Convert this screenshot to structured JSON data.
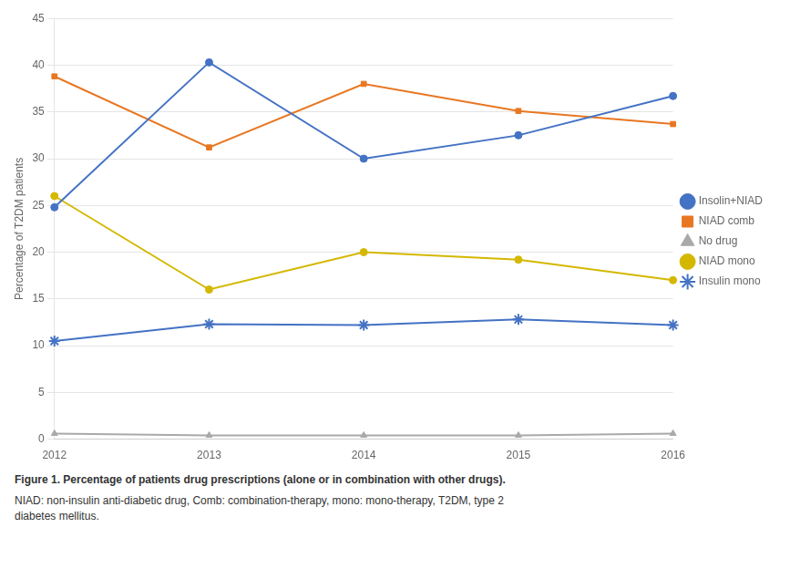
{
  "chart_data": {
    "type": "line",
    "title": "Figure 1. Percentage of patients drug prescriptions (alone or in combination with other drugs).",
    "subtitle": "NIAD: non-insulin anti-diabetic drug, Comb: combination-therapy, mono: mono-therapy, T2DM, type 2\ndiabetes mellitus.",
    "y_label": "Percentage of T2DM patients",
    "categories": [
      2012,
      2013,
      2014,
      2015,
      2016
    ],
    "series": [
      {
        "name": "Insolin+NIAD",
        "color": "#4472C4",
        "marker": "circle",
        "values": [
          24.8,
          40.3,
          30.0,
          32.5,
          36.7
        ]
      },
      {
        "name": "NIAD comb",
        "color": "#E87722",
        "marker": "square",
        "values": [
          38.8,
          31.2,
          38.0,
          35.1,
          33.7
        ]
      },
      {
        "name": "No drug",
        "color": "#A9A9A9",
        "marker": "triangle",
        "values": [
          0.6,
          0.4,
          0.4,
          0.4,
          0.6
        ]
      },
      {
        "name": "NIAD mono",
        "color": "#D4B800",
        "marker": "circle",
        "values": [
          26.0,
          16.0,
          20.0,
          19.2,
          17.0
        ]
      },
      {
        "name": "Insulin mono",
        "color": "#4472C4",
        "marker": "star",
        "values": [
          10.5,
          12.3,
          12.2,
          12.8,
          12.2
        ]
      }
    ],
    "ylim": [
      0,
      45
    ],
    "yticks": [
      0,
      5,
      10,
      15,
      20,
      25,
      30,
      35,
      40,
      45
    ],
    "grid": true,
    "legend": "right"
  }
}
